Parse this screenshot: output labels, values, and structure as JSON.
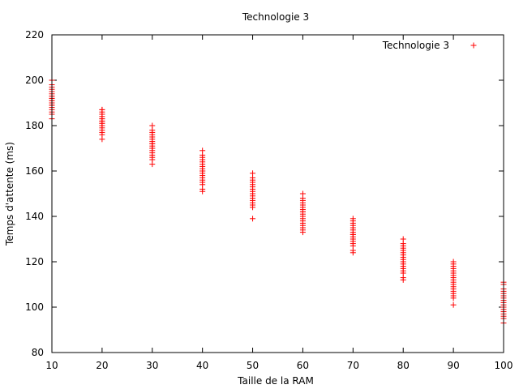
{
  "chart_data": {
    "type": "scatter",
    "title": "Technologie 3",
    "xlabel": "Taille de la RAM",
    "ylabel": "Temps d'attente (ms)",
    "xlim": [
      10,
      100
    ],
    "ylim": [
      80,
      220
    ],
    "x_ticks": [
      10,
      20,
      30,
      40,
      50,
      60,
      70,
      80,
      90,
      100
    ],
    "y_ticks": [
      80,
      100,
      120,
      140,
      160,
      180,
      200,
      220
    ],
    "x_tick_labels": [
      "10",
      "20",
      "30",
      "40",
      "50",
      "60",
      "70",
      "80",
      "90",
      "100"
    ],
    "y_tick_labels": [
      "80",
      "100",
      "120",
      "140",
      "160",
      "180",
      "200",
      "220"
    ],
    "grid": false,
    "legend_position": "top-right",
    "marker": "plus",
    "color": "#ff0000",
    "series": [
      {
        "name": "Technologie 3",
        "points": [
          [
            10,
            183
          ],
          [
            10,
            185
          ],
          [
            10,
            186
          ],
          [
            10,
            187
          ],
          [
            10,
            188
          ],
          [
            10,
            189
          ],
          [
            10,
            189
          ],
          [
            10,
            190
          ],
          [
            10,
            190
          ],
          [
            10,
            191
          ],
          [
            10,
            191
          ],
          [
            10,
            192
          ],
          [
            10,
            192
          ],
          [
            10,
            193
          ],
          [
            10,
            193
          ],
          [
            10,
            194
          ],
          [
            10,
            195
          ],
          [
            10,
            195
          ],
          [
            10,
            196
          ],
          [
            10,
            197
          ],
          [
            10,
            198
          ],
          [
            10,
            200
          ],
          [
            20,
            174
          ],
          [
            20,
            176
          ],
          [
            20,
            177
          ],
          [
            20,
            178
          ],
          [
            20,
            179
          ],
          [
            20,
            180
          ],
          [
            20,
            180
          ],
          [
            20,
            181
          ],
          [
            20,
            181
          ],
          [
            20,
            182
          ],
          [
            20,
            182
          ],
          [
            20,
            183
          ],
          [
            20,
            183
          ],
          [
            20,
            184
          ],
          [
            20,
            185
          ],
          [
            20,
            185
          ],
          [
            20,
            186
          ],
          [
            20,
            187
          ],
          [
            20,
            187
          ],
          [
            30,
            163
          ],
          [
            30,
            165
          ],
          [
            30,
            166
          ],
          [
            30,
            167
          ],
          [
            30,
            168
          ],
          [
            30,
            169
          ],
          [
            30,
            170
          ],
          [
            30,
            170
          ],
          [
            30,
            171
          ],
          [
            30,
            172
          ],
          [
            30,
            172
          ],
          [
            30,
            173
          ],
          [
            30,
            174
          ],
          [
            30,
            175
          ],
          [
            30,
            176
          ],
          [
            30,
            177
          ],
          [
            30,
            178
          ],
          [
            30,
            180
          ],
          [
            40,
            151
          ],
          [
            40,
            152
          ],
          [
            40,
            154
          ],
          [
            40,
            155
          ],
          [
            40,
            156
          ],
          [
            40,
            157
          ],
          [
            40,
            158
          ],
          [
            40,
            159
          ],
          [
            40,
            160
          ],
          [
            40,
            160
          ],
          [
            40,
            161
          ],
          [
            40,
            162
          ],
          [
            40,
            163
          ],
          [
            40,
            164
          ],
          [
            40,
            165
          ],
          [
            40,
            166
          ],
          [
            40,
            167
          ],
          [
            40,
            169
          ],
          [
            50,
            139
          ],
          [
            50,
            144
          ],
          [
            50,
            145
          ],
          [
            50,
            146
          ],
          [
            50,
            147
          ],
          [
            50,
            148
          ],
          [
            50,
            149
          ],
          [
            50,
            150
          ],
          [
            50,
            150
          ],
          [
            50,
            151
          ],
          [
            50,
            152
          ],
          [
            50,
            153
          ],
          [
            50,
            154
          ],
          [
            50,
            155
          ],
          [
            50,
            156
          ],
          [
            50,
            157
          ],
          [
            50,
            159
          ],
          [
            60,
            133
          ],
          [
            60,
            134
          ],
          [
            60,
            135
          ],
          [
            60,
            136
          ],
          [
            60,
            137
          ],
          [
            60,
            138
          ],
          [
            60,
            139
          ],
          [
            60,
            140
          ],
          [
            60,
            141
          ],
          [
            60,
            142
          ],
          [
            60,
            142
          ],
          [
            60,
            143
          ],
          [
            60,
            144
          ],
          [
            60,
            145
          ],
          [
            60,
            146
          ],
          [
            60,
            147
          ],
          [
            60,
            148
          ],
          [
            60,
            150
          ],
          [
            70,
            124
          ],
          [
            70,
            125
          ],
          [
            70,
            127
          ],
          [
            70,
            128
          ],
          [
            70,
            129
          ],
          [
            70,
            130
          ],
          [
            70,
            131
          ],
          [
            70,
            132
          ],
          [
            70,
            132
          ],
          [
            70,
            133
          ],
          [
            70,
            134
          ],
          [
            70,
            135
          ],
          [
            70,
            136
          ],
          [
            70,
            137
          ],
          [
            70,
            138
          ],
          [
            70,
            139
          ],
          [
            80,
            112
          ],
          [
            80,
            113
          ],
          [
            80,
            115
          ],
          [
            80,
            116
          ],
          [
            80,
            117
          ],
          [
            80,
            118
          ],
          [
            80,
            119
          ],
          [
            80,
            120
          ],
          [
            80,
            121
          ],
          [
            80,
            122
          ],
          [
            80,
            123
          ],
          [
            80,
            124
          ],
          [
            80,
            125
          ],
          [
            80,
            126
          ],
          [
            80,
            127
          ],
          [
            80,
            128
          ],
          [
            80,
            130
          ],
          [
            90,
            101
          ],
          [
            90,
            104
          ],
          [
            90,
            105
          ],
          [
            90,
            106
          ],
          [
            90,
            107
          ],
          [
            90,
            108
          ],
          [
            90,
            109
          ],
          [
            90,
            110
          ],
          [
            90,
            111
          ],
          [
            90,
            112
          ],
          [
            90,
            113
          ],
          [
            90,
            114
          ],
          [
            90,
            115
          ],
          [
            90,
            116
          ],
          [
            90,
            117
          ],
          [
            90,
            118
          ],
          [
            90,
            119
          ],
          [
            90,
            120
          ],
          [
            100,
            93
          ],
          [
            100,
            95
          ],
          [
            100,
            96
          ],
          [
            100,
            97
          ],
          [
            100,
            98
          ],
          [
            100,
            99
          ],
          [
            100,
            100
          ],
          [
            100,
            101
          ],
          [
            100,
            102
          ],
          [
            100,
            103
          ],
          [
            100,
            104
          ],
          [
            100,
            105
          ],
          [
            100,
            106
          ],
          [
            100,
            107
          ],
          [
            100,
            108
          ],
          [
            100,
            110
          ],
          [
            100,
            111
          ]
        ]
      }
    ]
  }
}
